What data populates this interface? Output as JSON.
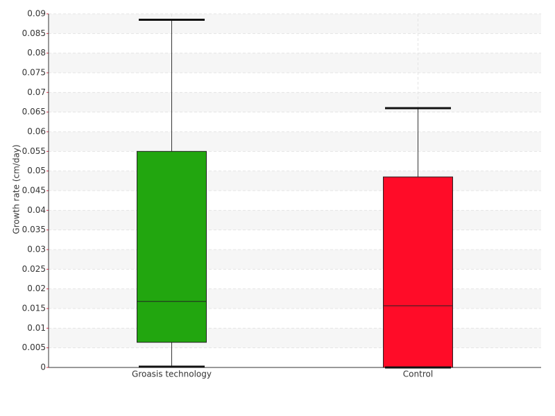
{
  "chart_data": {
    "type": "box",
    "y_label": "Growth rate (cm/day)",
    "categories": [
      "Groasis technology",
      "Control"
    ],
    "colors": [
      "#22a60f",
      "#ff0c28"
    ],
    "min": [
      0.0002,
      0
    ],
    "q1": [
      0.0064,
      0
    ],
    "median": [
      0.0168,
      0.0157
    ],
    "q3": [
      0.055,
      0.0485
    ],
    "max": [
      0.0885,
      0.066
    ],
    "ylim": [
      0,
      0.09
    ],
    "yticks": [
      0,
      0.005,
      0.01,
      0.015,
      0.02,
      0.025,
      0.03,
      0.035,
      0.04,
      0.045,
      0.05,
      0.055,
      0.06,
      0.065,
      0.07,
      0.075,
      0.08,
      0.085,
      0.09
    ],
    "grid": true
  }
}
